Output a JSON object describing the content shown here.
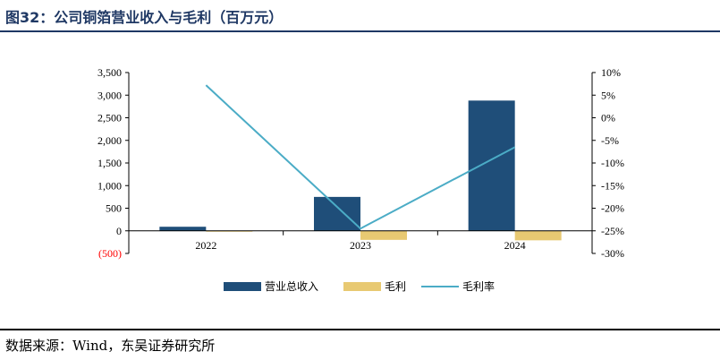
{
  "header": {
    "title": "图32：公司铜箔营业收入与毛利（百万元）"
  },
  "footer": {
    "source": "数据来源：Wind，东吴证券研究所"
  },
  "colors": {
    "revenue": "#1f4e79",
    "gross_profit": "#e8c972",
    "gross_margin": "#4bacc6",
    "title": "#1f3864"
  },
  "chart_data": {
    "type": "bar",
    "categories": [
      "2022",
      "2023",
      "2024"
    ],
    "series": [
      {
        "name": "营业总收入",
        "type": "bar",
        "axis": "left",
        "values": [
          90,
          750,
          2880
        ]
      },
      {
        "name": "毛利",
        "type": "bar",
        "axis": "left",
        "values": [
          -10,
          -200,
          -210
        ]
      },
      {
        "name": "毛利率",
        "type": "line",
        "axis": "right",
        "values": [
          7.2,
          -24.5,
          -6.5
        ]
      }
    ],
    "y_left": {
      "min": -500,
      "max": 3500,
      "step": 500,
      "tick_labels": [
        "(500)",
        "0",
        "500",
        "1,000",
        "1,500",
        "2,000",
        "2,500",
        "3,000",
        "3,500"
      ]
    },
    "y_right": {
      "min": -30,
      "max": 10,
      "step": 5,
      "tick_labels": [
        "-30%",
        "-25%",
        "-20%",
        "-15%",
        "-10%",
        "-5%",
        "0%",
        "5%",
        "10%"
      ]
    },
    "legend_position": "bottom",
    "grid": false
  }
}
